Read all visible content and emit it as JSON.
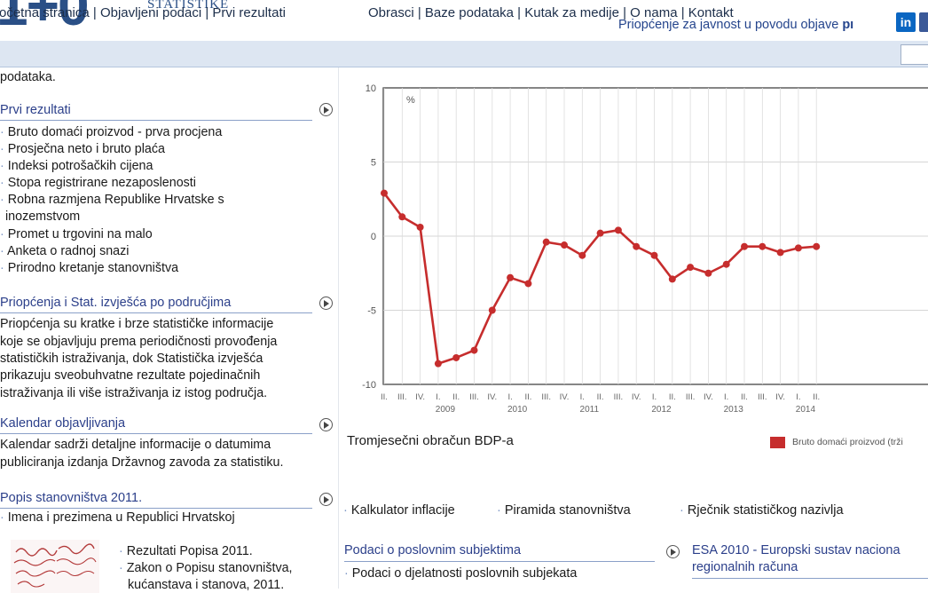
{
  "header": {
    "logo_partial": "1+0",
    "logo_subtitle": "STATISTIKE",
    "announcement": "Priopćenje za javnost u povodu objave",
    "announcement_tail": "pı",
    "social_linkedin": "in"
  },
  "nav": {
    "left_items": "očetna stranica | Objavljeni podaci | Prvi rezultati",
    "right_items": "Obrasci | Baze podataka | Kutak za medije | O nama | Kontakt"
  },
  "left": {
    "top_fragment": "podataka.",
    "prvi_rezultati": {
      "title": "Prvi rezultati",
      "items": [
        "Bruto domaći proizvod - prva procjena",
        "Prosječna neto i bruto plaća",
        "Indeksi potrošačkih cijena",
        "Stopa registrirane nezaposlenosti",
        "Robna razmjena Republike Hrvatske s",
        "inozemstvom",
        "Promet u trgovini na malo",
        "Anketa o radnoj snazi",
        "Prirodno kretanje stanovništva"
      ]
    },
    "priopcenja": {
      "title": "Priopćenja i Stat. izvješća po područjima",
      "lines": [
        "Priopćenja su kratke i brze statističke informacije",
        "koje se objavljuju prema periodičnosti provođenja",
        "statističkih istraživanja, dok Statistička izvješća",
        "prikazuju sveobuhvatne rezultate pojedinačnih",
        "istraživanja ili više istraživanja iz istog područja."
      ]
    },
    "kalendar": {
      "title": "Kalendar objavljivanja",
      "lines": [
        "Kalendar sadrži detaljne informacije o datumima",
        "publiciranja izdanja Državnog zavoda za statistiku."
      ]
    },
    "popis": {
      "title": "Popis stanovništva 2011.",
      "item": "Imena i prezimena u Republici Hrvatskoj",
      "sub_items": [
        "Rezultati Popisa 2011.",
        "Zakon o Popisu stanovništva,",
        "kućanstava i stanova, 2011."
      ]
    }
  },
  "chart_data": {
    "type": "line",
    "unit_label": "%",
    "ylim": [
      -10,
      10
    ],
    "y_ticks": [
      "10",
      "5",
      "0",
      "-5",
      "-10"
    ],
    "x_tick_labels": [
      "II.",
      "III.",
      "IV.",
      "I.",
      "II.",
      "III.",
      "IV.",
      "I.",
      "II.",
      "III.",
      "IV.",
      "I.",
      "II.",
      "III.",
      "IV.",
      "I.",
      "II.",
      "III.",
      "IV.",
      "I.",
      "II.",
      "III.",
      "IV.",
      "I.",
      "II."
    ],
    "year_labels": [
      "2009",
      "2010",
      "2011",
      "2012",
      "2013",
      "2014"
    ],
    "grid": true,
    "series": [
      {
        "name": "Bruto domaći proizvod (trži",
        "color": "#c62d2d",
        "x": [
          "2008 Q2",
          "2008 Q3",
          "2008 Q4",
          "2009 Q1",
          "2009 Q2",
          "2009 Q3",
          "2009 Q4",
          "2010 Q1",
          "2010 Q2",
          "2010 Q3",
          "2010 Q4",
          "2011 Q1",
          "2011 Q2",
          "2011 Q3",
          "2011 Q4",
          "2012 Q1",
          "2012 Q2",
          "2012 Q3",
          "2012 Q4",
          "2013 Q1",
          "2013 Q2",
          "2013 Q3",
          "2013 Q4",
          "2014 Q1",
          "2014 Q2"
        ],
        "values": [
          2.9,
          1.3,
          0.6,
          -8.6,
          -8.2,
          -7.7,
          -5.0,
          -2.8,
          -3.2,
          -0.4,
          -0.6,
          -1.3,
          0.2,
          0.4,
          -0.7,
          -1.3,
          -2.9,
          -2.1,
          -2.5,
          -1.9,
          -0.7,
          -0.7,
          -1.1,
          -0.8,
          -0.7
        ]
      }
    ],
    "caption": "Tromjesečni obračun BDP-a"
  },
  "quick_links": [
    "Kalkulator inflacije",
    "Piramida stanovništva",
    "Rječnik statističkog nazivlja"
  ],
  "bottom": {
    "poslovni": {
      "title": "Podaci o poslovnim subjektima",
      "item": "Podaci o djelatnosti poslovnih subjekata"
    },
    "esa": {
      "title_line1": "ESA 2010 - Europski sustav naciona",
      "title_line2": "regionalnih računa"
    }
  }
}
